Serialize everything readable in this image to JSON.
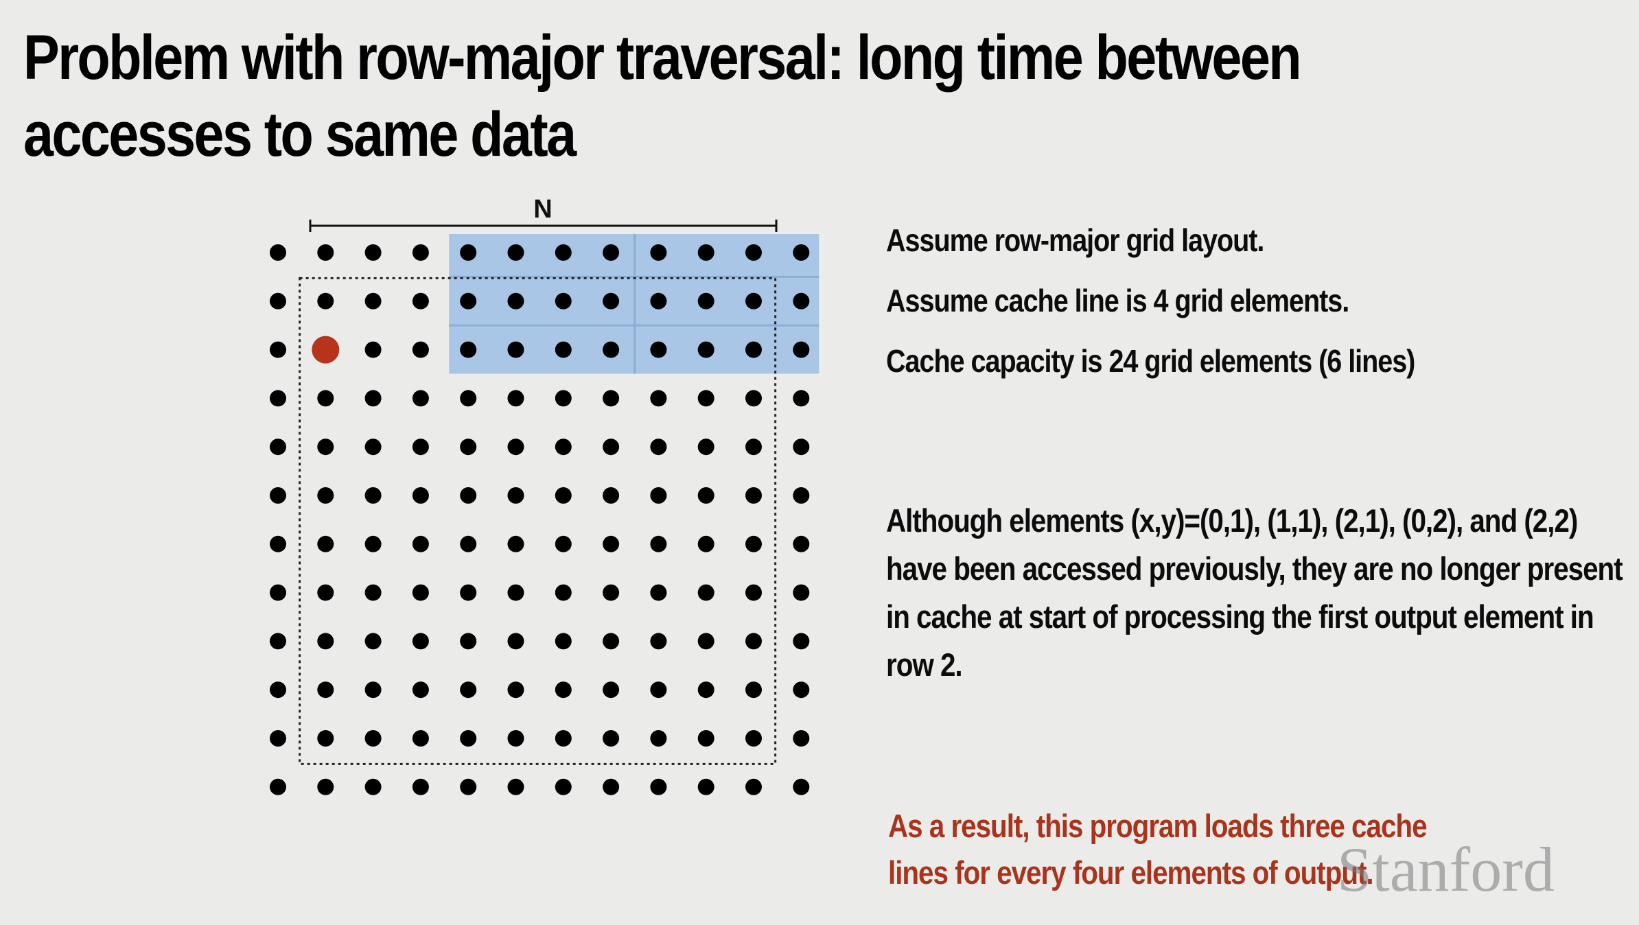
{
  "slide": {
    "title": "Problem with row-major traversal: long time between accesses to same data"
  },
  "diagram": {
    "width_label": "N",
    "grid_rows": 12,
    "grid_cols": 12,
    "cached_rows": [
      0,
      1,
      2
    ],
    "cached_first_col": 4,
    "cache_line_elements": 4,
    "current_element": {
      "row": 2,
      "col": 1
    },
    "colors": {
      "dot": "#000000",
      "current_element": "#b5341b",
      "cached_region": "#a9c6e7",
      "cached_region_border": "#8aaed6",
      "background": "#ebebea"
    }
  },
  "notes": {
    "assumption_1": "Assume row-major grid layout.",
    "assumption_2": "Assume cache line is 4 grid elements.",
    "assumption_3": "Cache capacity is 24 grid elements (6 lines)",
    "explanation": "Although elements (x,y)=(0,1), (1,1), (2,1), (0,2), and (2,2) have been accessed previously, they are no longer present in cache at start of processing the first output element in row 2.",
    "result": "As a result, this program loads three cache lines for every four elements of output."
  },
  "watermark": "Stanford"
}
